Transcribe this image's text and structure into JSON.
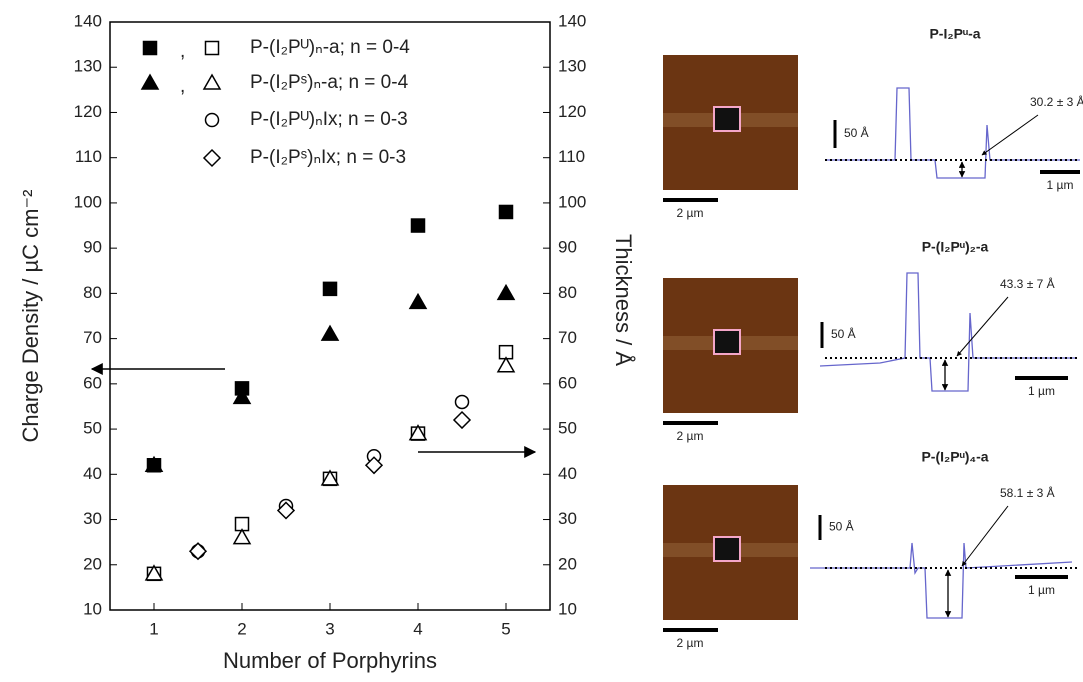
{
  "chart_data": {
    "type": "scatter",
    "x_label": "Number of Porphyrins",
    "y_label": "Charge Density / µC cm⁻²",
    "y2_label": "Thickness / Å",
    "xlim": [
      0.5,
      5.5
    ],
    "xticks": [
      1,
      2,
      3,
      4,
      5
    ],
    "ylim": [
      10,
      140
    ],
    "yticks": [
      10,
      20,
      30,
      40,
      50,
      60,
      70,
      80,
      90,
      100,
      110,
      120,
      130,
      140
    ],
    "y2lim": [
      10,
      140
    ],
    "y2ticks": [
      10,
      20,
      30,
      40,
      50,
      60,
      70,
      80,
      90,
      100,
      110,
      120,
      130,
      140
    ],
    "legend_separator": ",",
    "color": "#000000",
    "series": [
      {
        "name": "P-(I₂Pᵁ)ₙ-a; n = 0-4",
        "marker": "square",
        "x": [
          1,
          2,
          3,
          4,
          5
        ],
        "charge_density": [
          42,
          59,
          81,
          95,
          98
        ],
        "thickness": [
          18,
          29,
          39,
          49,
          67
        ]
      },
      {
        "name": "P-(I₂Pˢ)ₙ-a; n = 0-4",
        "marker": "triangle",
        "x": [
          1,
          2,
          3,
          4,
          5
        ],
        "charge_density": [
          42,
          57,
          71,
          78,
          80
        ],
        "thickness": [
          18,
          26,
          39,
          49,
          64
        ]
      },
      {
        "name": "P-(I₂Pᵁ)ₙIx; n = 0-3",
        "marker": "circle",
        "x": [
          1.5,
          2.5,
          3.5,
          4.5
        ],
        "thickness": [
          23,
          33,
          44,
          56
        ]
      },
      {
        "name": "P-(I₂Pˢ)ₙIx; n = 0-3",
        "marker": "diamond",
        "x": [
          1.5,
          2.5,
          3.5,
          4.5
        ],
        "thickness": [
          23,
          32,
          42,
          52
        ]
      }
    ]
  },
  "afm_panels": [
    {
      "title": "P-I₂Pᵘ-a",
      "image_scale": "2 µm",
      "height_scale": "50 Å",
      "length_scale": "1 µm",
      "thickness": "30.2 ± 3 Å"
    },
    {
      "title": "P-(I₂Pᵘ)₂-a",
      "image_scale": "2 µm",
      "height_scale": "50 Å",
      "length_scale": "1 µm",
      "thickness": "43.3 ± 7 Å"
    },
    {
      "title": "P-(I₂Pᵘ)₄-a",
      "image_scale": "2 µm",
      "height_scale": "50 Å",
      "length_scale": "1 µm",
      "thickness": "58.1 ± 3 Å"
    }
  ]
}
